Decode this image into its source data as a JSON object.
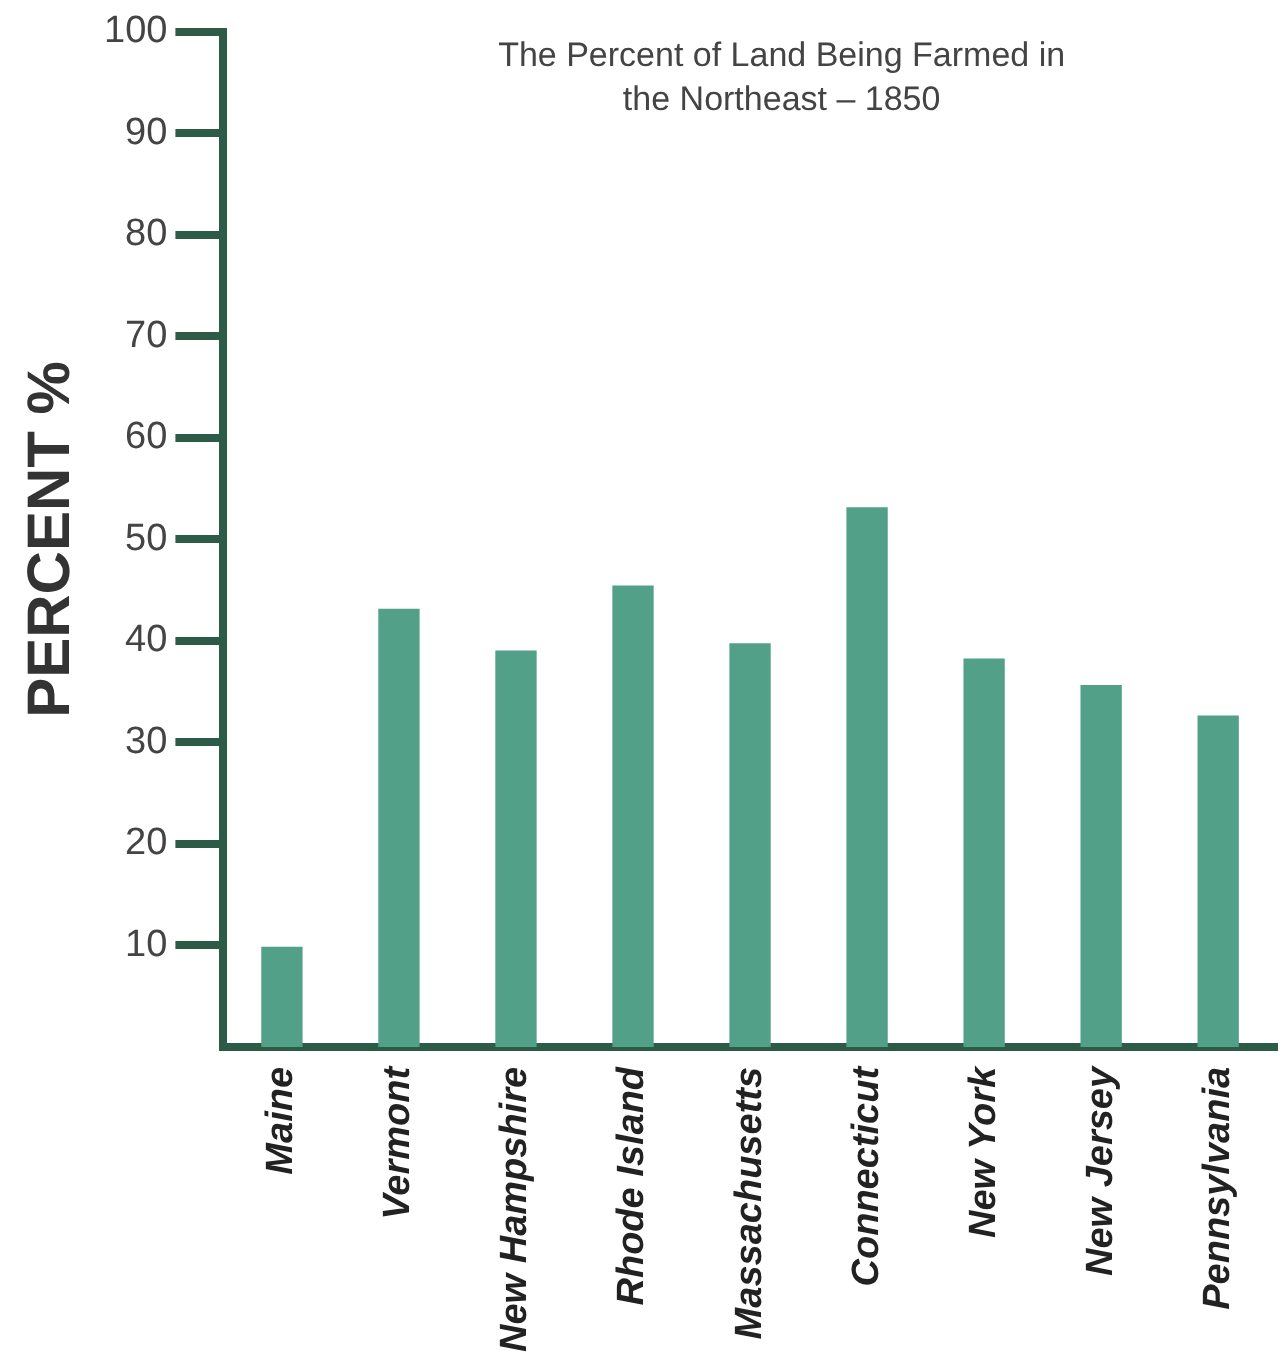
{
  "chart_data": {
    "type": "bar",
    "title": "The Percent of Land Being Farmed in the Northeast – 1850",
    "ylabel": "PERCENT %",
    "categories": [
      "Maine",
      "Vermont",
      "New Hampshire",
      "Rhode Island",
      "Massachusetts",
      "Connecticut",
      "New York",
      "New Jersey",
      "Pennsylvania"
    ],
    "values": [
      9.8,
      43.1,
      39,
      45.4,
      39.7,
      53.1,
      38.2,
      35.6,
      32.6
    ],
    "color": "#52a088",
    "ylim": [
      0,
      100
    ],
    "yticks": [
      10,
      20,
      30,
      40,
      50,
      60,
      70,
      80,
      90,
      100
    ],
    "grid": false,
    "legend": false
  }
}
